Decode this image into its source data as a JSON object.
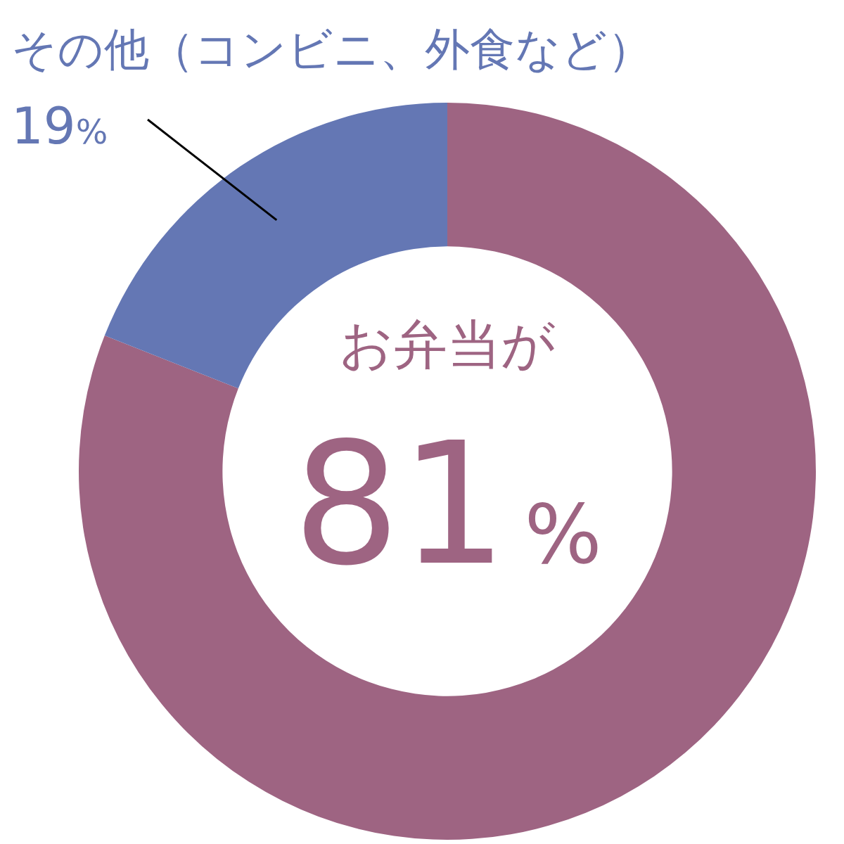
{
  "chart_data": {
    "type": "donut",
    "categories": [
      "お弁当が",
      "その他（コンビニ、外食など）"
    ],
    "values": [
      81,
      19
    ],
    "colors": [
      "#9e6482",
      "#6477b4"
    ],
    "value_labels": [
      "81%",
      "19%"
    ]
  }
}
